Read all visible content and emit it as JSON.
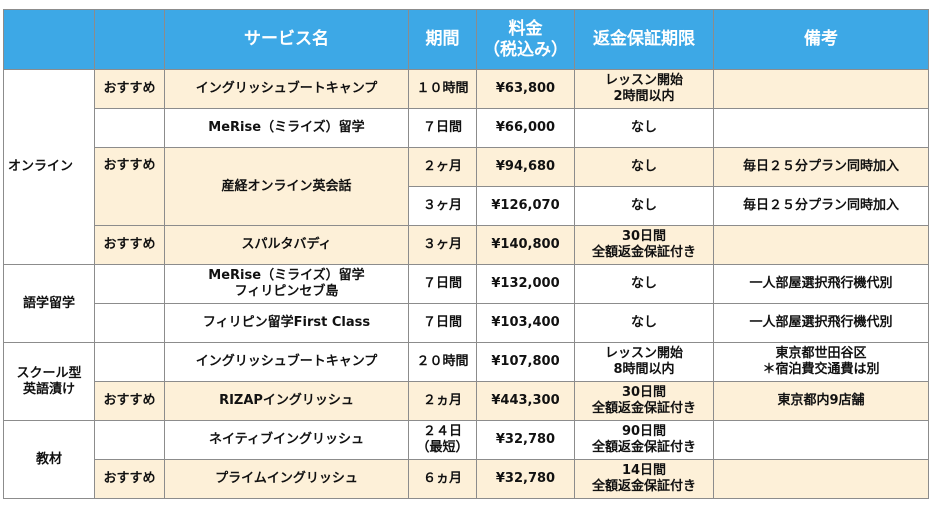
{
  "headers": [
    "",
    "",
    "サービス名",
    "期間",
    "料金\n（税込み）",
    "返金保証期限",
    "備考"
  ],
  "categories": {
    "online": "オンライン",
    "study_abroad": "語学留学",
    "school": "スクール型\n英語漬け",
    "material": "教材"
  },
  "recommend_label": "おすすめ",
  "rows": [
    {
      "service": "イングリッシュブートキャンプ",
      "period": "１０時間",
      "price": "¥63,800",
      "refund": "レッスン開始\n2時間以内",
      "note": ""
    },
    {
      "service": "MeRise（ミライズ）留学",
      "period": "７日間",
      "price": "¥66,000",
      "refund": "なし",
      "note": ""
    },
    {
      "service": "産経オンライン英会話",
      "period": "２ヶ月",
      "price": "¥94,680",
      "refund": "なし",
      "note": "毎日２５分プラン同時加入"
    },
    {
      "service": "",
      "period": "３ヶ月",
      "price": "¥126,070",
      "refund": "なし",
      "note": "毎日２５分プラン同時加入"
    },
    {
      "service": "スパルタバディ",
      "period": "３ヶ月",
      "price": "¥140,800",
      "refund": "30日間\n全額返金保証付き",
      "note": ""
    },
    {
      "service": "MeRise（ミライズ）留学\nフィリピンセブ島",
      "period": "７日間",
      "price": "¥132,000",
      "refund": "なし",
      "note": "一人部屋選択飛行機代別"
    },
    {
      "service": "フィリピン留学First Class",
      "period": "７日間",
      "price": "¥103,400",
      "refund": "なし",
      "note": "一人部屋選択飛行機代別"
    },
    {
      "service": "イングリッシュブートキャンプ",
      "period": "２０時間",
      "price": "¥107,800",
      "refund": "レッスン開始\n8時間以内",
      "note": "東京都世田谷区\n＊宿泊費交通費は別"
    },
    {
      "service": "RIZAPイングリッシュ",
      "period": "２ヵ月",
      "price": "¥443,300",
      "refund": "30日間\n全額返金保証付き",
      "note": "東京都内9店舗"
    },
    {
      "service": "ネイティブイングリッシュ",
      "period": "２４日\n（最短）",
      "price": "¥32,780",
      "refund": "90日間\n全額返金保証付き",
      "note": ""
    },
    {
      "service": "プライムイングリッシュ",
      "period": "６ヵ月",
      "price": "¥32,780",
      "refund": "14日間\n全額返金保証付き",
      "note": ""
    }
  ],
  "colors": {
    "header_bg": "#3da8e6",
    "highlight_bg": "#fdf0d8",
    "border": "#8c8c8c"
  }
}
